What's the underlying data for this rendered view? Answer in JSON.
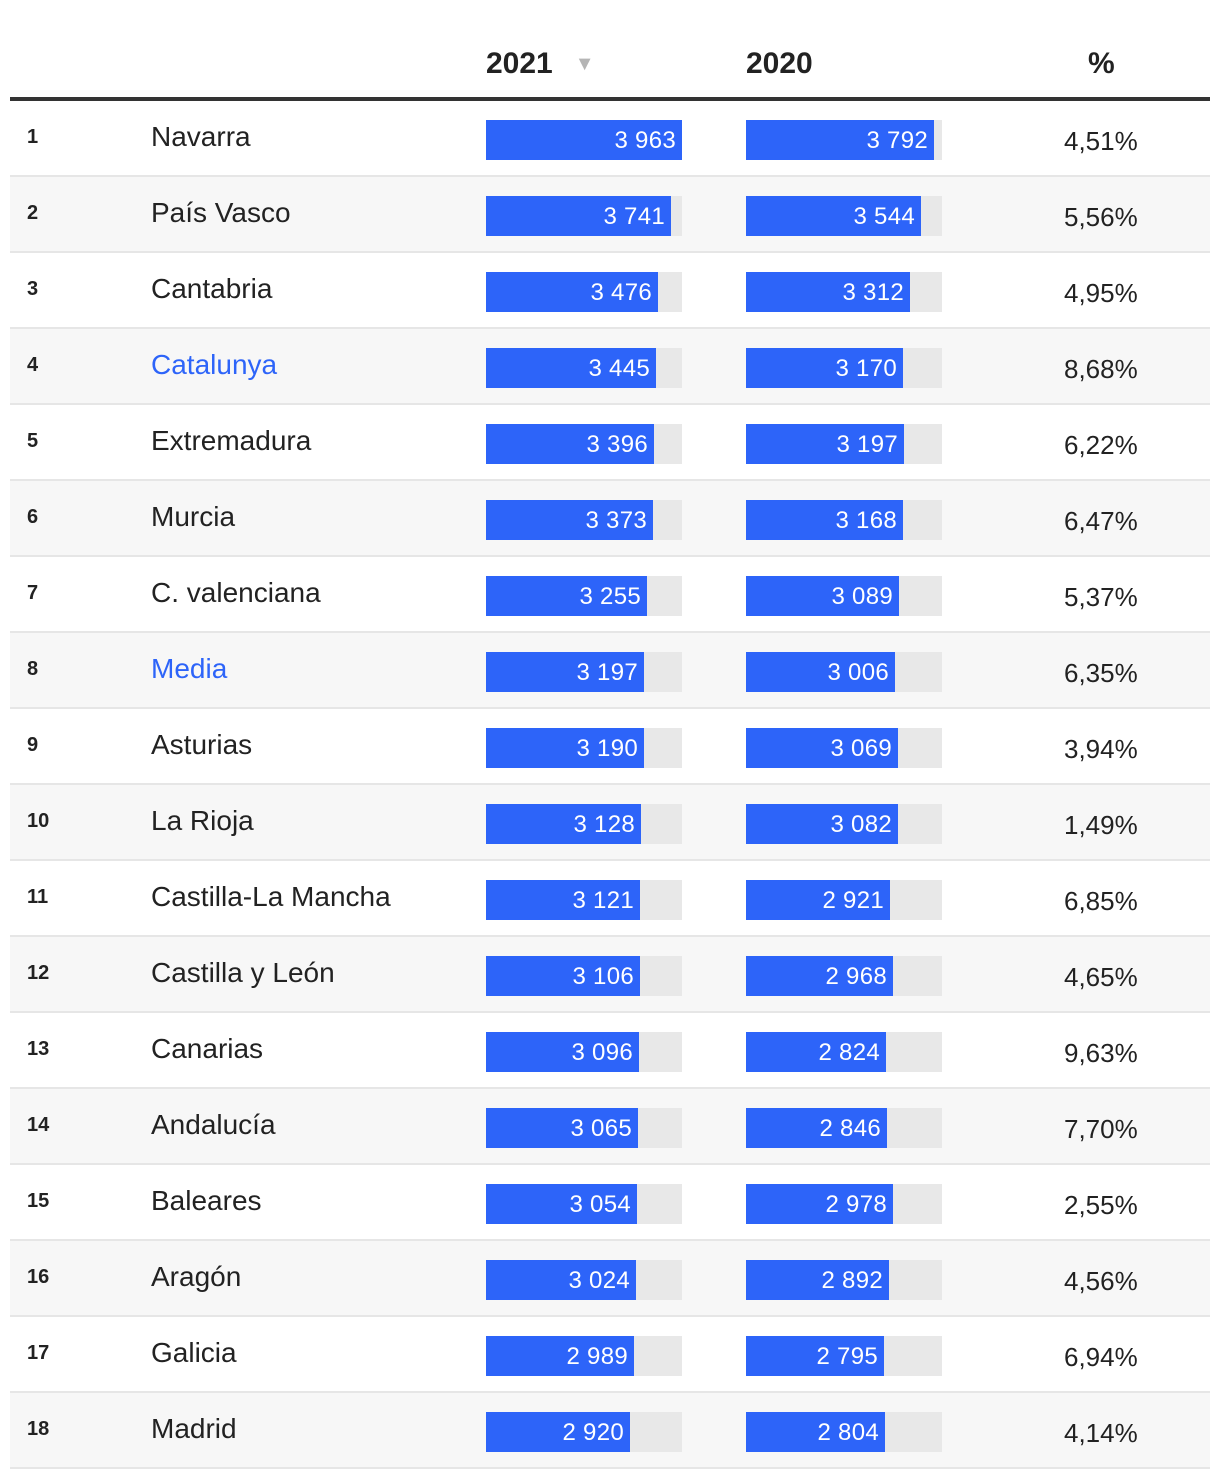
{
  "header": {
    "col_2021": "2021",
    "col_2020": "2020",
    "col_pct": "%",
    "sort_icon": "▼"
  },
  "colors": {
    "bar": "#2d64f9",
    "bar_track": "#e8e8e8",
    "highlight_text": "#2d64f9"
  },
  "scale_max": 3963,
  "rows": [
    {
      "rank": "1",
      "name": "Navarra",
      "highlight": false,
      "v2021": 3963,
      "l2021": "3 963",
      "v2020": 3792,
      "l2020": "3 792",
      "pct": "4,51%"
    },
    {
      "rank": "2",
      "name": "País Vasco",
      "highlight": false,
      "v2021": 3741,
      "l2021": "3 741",
      "v2020": 3544,
      "l2020": "3 544",
      "pct": "5,56%"
    },
    {
      "rank": "3",
      "name": "Cantabria",
      "highlight": false,
      "v2021": 3476,
      "l2021": "3 476",
      "v2020": 3312,
      "l2020": "3 312",
      "pct": "4,95%"
    },
    {
      "rank": "4",
      "name": "Catalunya",
      "highlight": true,
      "v2021": 3445,
      "l2021": "3 445",
      "v2020": 3170,
      "l2020": "3 170",
      "pct": "8,68%"
    },
    {
      "rank": "5",
      "name": "Extremadura",
      "highlight": false,
      "v2021": 3396,
      "l2021": "3 396",
      "v2020": 3197,
      "l2020": "3 197",
      "pct": "6,22%"
    },
    {
      "rank": "6",
      "name": "Murcia",
      "highlight": false,
      "v2021": 3373,
      "l2021": "3 373",
      "v2020": 3168,
      "l2020": "3 168",
      "pct": "6,47%"
    },
    {
      "rank": "7",
      "name": "C. valenciana",
      "highlight": false,
      "v2021": 3255,
      "l2021": "3 255",
      "v2020": 3089,
      "l2020": "3 089",
      "pct": "5,37%"
    },
    {
      "rank": "8",
      "name": "Media",
      "highlight": true,
      "v2021": 3197,
      "l2021": "3 197",
      "v2020": 3006,
      "l2020": "3 006",
      "pct": "6,35%"
    },
    {
      "rank": "9",
      "name": "Asturias",
      "highlight": false,
      "v2021": 3190,
      "l2021": "3 190",
      "v2020": 3069,
      "l2020": "3 069",
      "pct": "3,94%"
    },
    {
      "rank": "10",
      "name": "La Rioja",
      "highlight": false,
      "v2021": 3128,
      "l2021": "3 128",
      "v2020": 3082,
      "l2020": "3 082",
      "pct": "1,49%"
    },
    {
      "rank": "11",
      "name": "Castilla-La Mancha",
      "highlight": false,
      "v2021": 3121,
      "l2021": "3 121",
      "v2020": 2921,
      "l2020": "2 921",
      "pct": "6,85%"
    },
    {
      "rank": "12",
      "name": "Castilla y León",
      "highlight": false,
      "v2021": 3106,
      "l2021": "3 106",
      "v2020": 2968,
      "l2020": "2 968",
      "pct": "4,65%"
    },
    {
      "rank": "13",
      "name": "Canarias",
      "highlight": false,
      "v2021": 3096,
      "l2021": "3 096",
      "v2020": 2824,
      "l2020": "2 824",
      "pct": "9,63%"
    },
    {
      "rank": "14",
      "name": "Andalucía",
      "highlight": false,
      "v2021": 3065,
      "l2021": "3 065",
      "v2020": 2846,
      "l2020": "2 846",
      "pct": "7,70%"
    },
    {
      "rank": "15",
      "name": "Baleares",
      "highlight": false,
      "v2021": 3054,
      "l2021": "3 054",
      "v2020": 2978,
      "l2020": "2 978",
      "pct": "2,55%"
    },
    {
      "rank": "16",
      "name": "Aragón",
      "highlight": false,
      "v2021": 3024,
      "l2021": "3 024",
      "v2020": 2892,
      "l2020": "2 892",
      "pct": "4,56%"
    },
    {
      "rank": "17",
      "name": "Galicia",
      "highlight": false,
      "v2021": 2989,
      "l2021": "2 989",
      "v2020": 2795,
      "l2020": "2 795",
      "pct": "6,94%"
    },
    {
      "rank": "18",
      "name": "Madrid",
      "highlight": false,
      "v2021": 2920,
      "l2021": "2 920",
      "v2020": 2804,
      "l2020": "2 804",
      "pct": "4,14%"
    }
  ]
}
